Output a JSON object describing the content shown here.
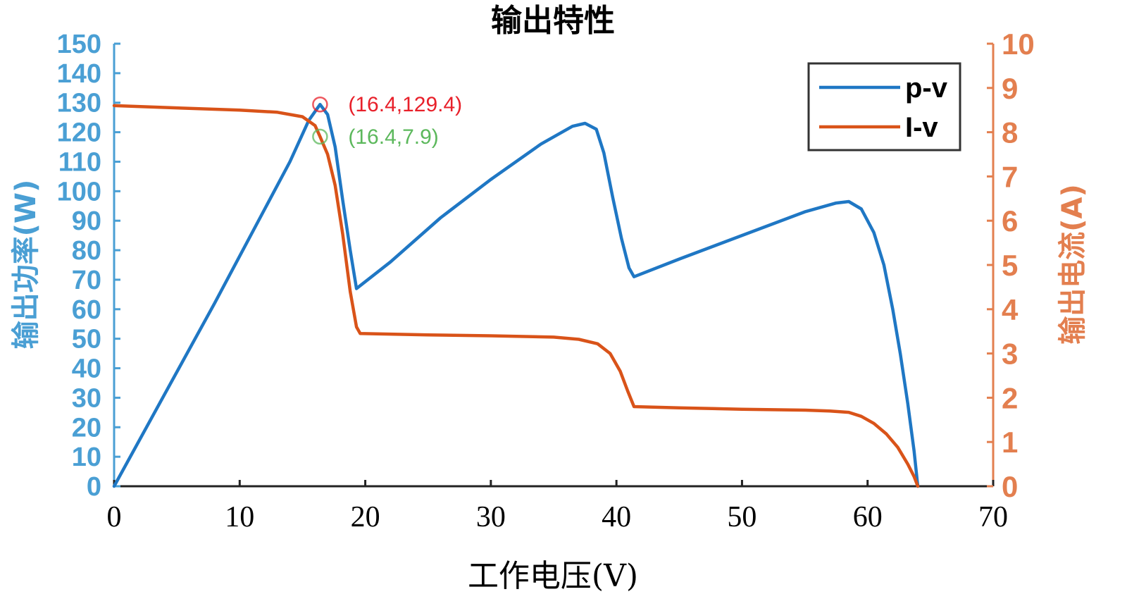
{
  "chart_data": {
    "type": "line",
    "title": "输出特性",
    "xlabel": "工作电压(V)",
    "ylabel": "输出功率(W)",
    "y2label": "输出电流(A)",
    "xlim": [
      0,
      70
    ],
    "ylim": [
      0,
      150
    ],
    "y2lim": [
      0,
      10
    ],
    "xticks": [
      "0",
      "10",
      "20",
      "30",
      "40",
      "50",
      "60",
      "70"
    ],
    "yticks": [
      "0",
      "10",
      "20",
      "30",
      "40",
      "50",
      "60",
      "70",
      "80",
      "90",
      "100",
      "110",
      "120",
      "130",
      "140",
      "150"
    ],
    "y2ticks": [
      "0",
      "1",
      "2",
      "3",
      "4",
      "5",
      "6",
      "7",
      "8",
      "9",
      "10"
    ],
    "grid": false,
    "legend_position": "top-right",
    "colors": {
      "pv": "#1f77c4",
      "iv": "#d95319",
      "axis_left": "#4a9fd4",
      "axis_right": "#e37f4f",
      "peak_power": "#e8202a",
      "peak_current": "#5cb85c"
    },
    "series": [
      {
        "name": "p-v",
        "axis": "left",
        "x": [
          0,
          4,
          8,
          12,
          14,
          15.5,
          16.4,
          17.0,
          17.6,
          18.2,
          18.8,
          19.3,
          22,
          26,
          30,
          34,
          36.5,
          37.5,
          38.4,
          39.0,
          39.7,
          40.4,
          41.0,
          41.4,
          45,
          50,
          55,
          57.5,
          58.5,
          59.5,
          60.5,
          61.3,
          62.0,
          62.6,
          63.2,
          63.7,
          64.0
        ],
        "y": [
          0,
          31,
          62,
          94,
          110,
          124,
          129.4,
          126,
          115,
          97,
          80,
          67,
          76,
          91,
          104,
          116,
          122,
          123,
          121,
          113,
          98,
          84,
          74,
          71,
          77,
          85,
          93,
          96,
          96.5,
          94,
          86,
          75,
          60,
          45,
          28,
          12,
          0
        ]
      },
      {
        "name": "I-v",
        "axis": "right",
        "x": [
          0,
          5,
          10,
          13,
          15,
          16.0,
          16.4,
          17.0,
          17.6,
          18.2,
          18.8,
          19.3,
          19.6,
          25,
          30,
          35,
          37,
          38.5,
          39.5,
          40.3,
          40.9,
          41.4,
          45,
          50,
          55,
          57,
          58.5,
          59.5,
          60.5,
          61.5,
          62.4,
          63.2,
          63.7,
          64.0
        ],
        "y": [
          8.6,
          8.55,
          8.5,
          8.45,
          8.35,
          8.15,
          7.9,
          7.5,
          6.8,
          5.7,
          4.4,
          3.6,
          3.45,
          3.42,
          3.4,
          3.37,
          3.32,
          3.22,
          3.0,
          2.6,
          2.15,
          1.8,
          1.77,
          1.74,
          1.72,
          1.7,
          1.67,
          1.58,
          1.42,
          1.18,
          0.88,
          0.5,
          0.22,
          0.0
        ]
      }
    ],
    "annotations": [
      {
        "text": "(16.4,129.4)",
        "x": 16.4,
        "y": 129.4,
        "axis": "left",
        "color": "#e8202a"
      },
      {
        "text": "(16.4,7.9)",
        "x": 16.4,
        "y": 7.9,
        "axis": "right",
        "color": "#5cb85c"
      }
    ]
  }
}
